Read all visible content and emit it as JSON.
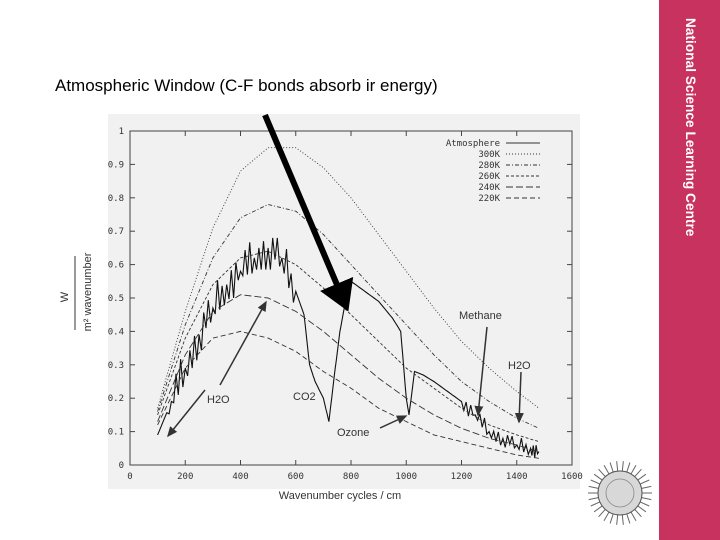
{
  "slide": {
    "title": "Atmospheric Window (C-F bonds absorb ir energy)",
    "side_text": "National Science Learning Centre",
    "accent_color": "#c8325e"
  },
  "chart_data": {
    "type": "line",
    "xlabel": "Wavenumber cycles / cm",
    "ylabel_top": "W",
    "ylabel_bottom": "m² wavenumber",
    "xlim": [
      0,
      1600
    ],
    "ylim": [
      0,
      1
    ],
    "xticks": [
      0,
      200,
      400,
      600,
      800,
      1000,
      1200,
      1400,
      1600
    ],
    "yticks": [
      0,
      0.1,
      0.2,
      0.3,
      0.4,
      0.5,
      0.6,
      0.7,
      0.8,
      0.9,
      1
    ],
    "grid": false,
    "legend_position": "top-right",
    "series": [
      {
        "name": "Atmosphere",
        "style": "solid",
        "x": [
          100,
          150,
          200,
          250,
          300,
          350,
          400,
          450,
          500,
          550,
          600,
          630,
          650,
          670,
          700,
          720,
          740,
          760,
          780,
          800,
          850,
          900,
          950,
          980,
          1000,
          1010,
          1030,
          1060,
          1100,
          1150,
          1200,
          1250,
          1300,
          1350,
          1400,
          1450,
          1480
        ],
        "y": [
          0.09,
          0.19,
          0.29,
          0.39,
          0.47,
          0.54,
          0.58,
          0.62,
          0.65,
          0.62,
          0.52,
          0.45,
          0.3,
          0.25,
          0.2,
          0.13,
          0.27,
          0.4,
          0.49,
          0.55,
          0.52,
          0.49,
          0.44,
          0.4,
          0.2,
          0.15,
          0.28,
          0.27,
          0.25,
          0.22,
          0.19,
          0.15,
          0.1,
          0.08,
          0.06,
          0.05,
          0.04
        ]
      },
      {
        "name": "300K",
        "style": "dotted",
        "x": [
          100,
          200,
          300,
          400,
          500,
          600,
          700,
          800,
          900,
          1000,
          1100,
          1200,
          1300,
          1400,
          1480
        ],
        "y": [
          0.17,
          0.46,
          0.71,
          0.88,
          0.95,
          0.95,
          0.89,
          0.8,
          0.69,
          0.58,
          0.47,
          0.37,
          0.29,
          0.22,
          0.17
        ]
      },
      {
        "name": "280K",
        "style": "dash-dot",
        "x": [
          100,
          200,
          300,
          400,
          500,
          600,
          700,
          800,
          900,
          1000,
          1100,
          1200,
          1300,
          1400,
          1480
        ],
        "y": [
          0.16,
          0.42,
          0.62,
          0.74,
          0.78,
          0.76,
          0.69,
          0.6,
          0.51,
          0.42,
          0.33,
          0.25,
          0.19,
          0.14,
          0.11
        ]
      },
      {
        "name": "260K",
        "style": "short-dash",
        "x": [
          100,
          200,
          300,
          400,
          500,
          600,
          700,
          800,
          900,
          1000,
          1100,
          1200,
          1300,
          1400,
          1480
        ],
        "y": [
          0.15,
          0.38,
          0.54,
          0.62,
          0.64,
          0.6,
          0.53,
          0.45,
          0.37,
          0.29,
          0.23,
          0.17,
          0.12,
          0.09,
          0.07
        ]
      },
      {
        "name": "240K",
        "style": "long-dash",
        "x": [
          100,
          200,
          300,
          400,
          500,
          600,
          700,
          800,
          900,
          1000,
          1100,
          1200,
          1300,
          1400,
          1480
        ],
        "y": [
          0.13,
          0.33,
          0.46,
          0.51,
          0.5,
          0.46,
          0.4,
          0.33,
          0.26,
          0.2,
          0.15,
          0.11,
          0.08,
          0.06,
          0.04
        ]
      },
      {
        "name": "220K",
        "style": "dashed",
        "x": [
          100,
          200,
          300,
          400,
          500,
          600,
          700,
          800,
          900,
          1000,
          1100,
          1200,
          1300,
          1400,
          1480
        ],
        "y": [
          0.12,
          0.29,
          0.38,
          0.4,
          0.38,
          0.34,
          0.28,
          0.23,
          0.17,
          0.13,
          0.09,
          0.07,
          0.05,
          0.03,
          0.02
        ]
      }
    ],
    "annotations": [
      "H2O",
      "CO2",
      "Ozone",
      "Methane",
      "H2O"
    ]
  }
}
